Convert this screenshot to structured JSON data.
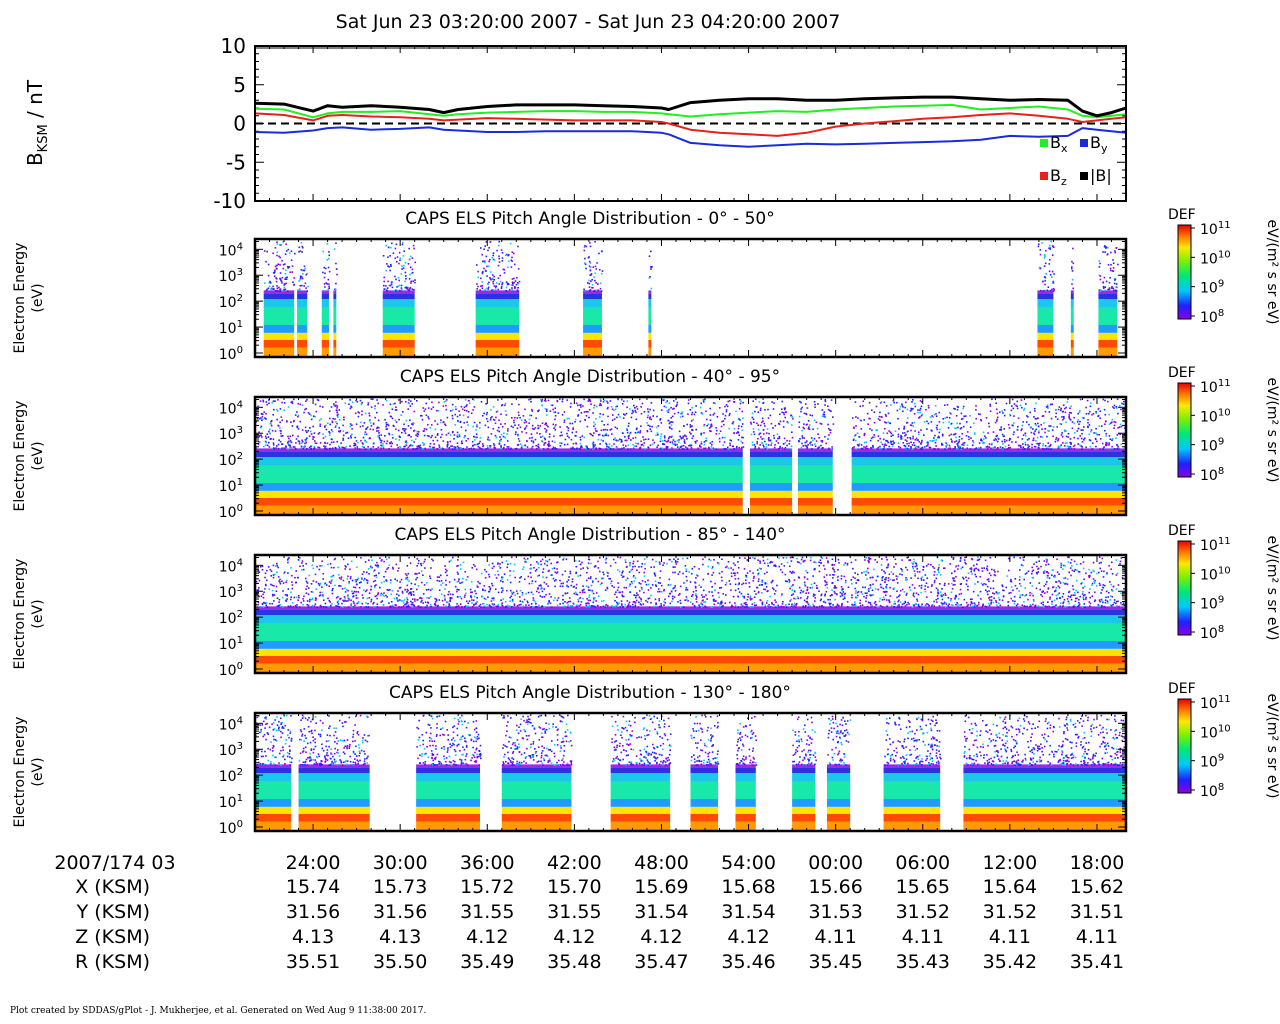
{
  "title": "Sat Jun 23 03:20:00 2007 - Sat Jun 23 04:20:00 2007",
  "footer": "Plot created by SDDAS/gPlot - J. Mukherjee, et al.  Generated on Wed Aug 9 11:38:00 2017.",
  "colors": {
    "bx": "#22ee22",
    "by": "#1a2bd8",
    "bz": "#e8211a",
    "bmag": "#000000"
  },
  "chart_data": [
    {
      "type": "line",
      "ylabel": "B_KSM / nT",
      "ylim": [
        -10,
        10
      ],
      "yticks": [
        "10",
        "5",
        "0",
        "-5",
        "-10"
      ],
      "xlim_min": [
        20,
        80
      ],
      "zero_line": "dashed",
      "legend_placement": "bottom-right",
      "x": [
        20,
        22,
        24,
        25,
        26,
        28,
        30,
        32,
        33,
        34,
        36,
        38,
        40,
        42,
        44,
        46,
        48,
        48.5,
        50,
        52,
        54,
        56,
        58,
        60,
        62,
        64,
        66,
        68,
        70,
        72,
        74,
        76,
        77,
        78,
        79,
        80
      ],
      "series": [
        {
          "name": "B",
          "sub": "x",
          "key": "bx",
          "values": [
            1.9,
            1.8,
            0.8,
            1.3,
            1.5,
            1.5,
            1.6,
            1.2,
            1.0,
            1.2,
            1.4,
            1.5,
            1.6,
            1.6,
            1.5,
            1.5,
            1.3,
            1.2,
            0.9,
            1.2,
            1.4,
            1.6,
            1.5,
            1.8,
            2.0,
            2.2,
            2.3,
            2.4,
            1.8,
            2.0,
            2.2,
            1.8,
            1.0,
            0.8,
            1.0,
            1.2
          ]
        },
        {
          "name": "B",
          "sub": "y",
          "key": "by",
          "values": [
            -1.1,
            -1.2,
            -0.9,
            -0.6,
            -0.5,
            -0.8,
            -0.7,
            -0.5,
            -0.8,
            -0.9,
            -1.1,
            -1.1,
            -1.0,
            -1.0,
            -1.0,
            -1.0,
            -1.2,
            -1.4,
            -2.5,
            -2.8,
            -3.0,
            -2.8,
            -2.6,
            -2.7,
            -2.6,
            -2.5,
            -2.4,
            -2.3,
            -2.1,
            -1.6,
            -1.7,
            -1.6,
            -0.6,
            -0.8,
            -1.0,
            -1.2
          ]
        },
        {
          "name": "B",
          "sub": "z",
          "key": "bz",
          "values": [
            1.3,
            1.1,
            0.4,
            1.0,
            1.1,
            0.9,
            0.8,
            0.6,
            0.4,
            0.5,
            0.7,
            0.6,
            0.5,
            0.4,
            0.4,
            0.4,
            0.2,
            0.0,
            -0.8,
            -1.2,
            -1.4,
            -1.6,
            -1.2,
            -0.4,
            0.0,
            0.3,
            0.6,
            0.8,
            1.1,
            1.3,
            1.0,
            0.6,
            0.2,
            0.4,
            0.6,
            0.8
          ]
        },
        {
          "name": "|B|",
          "sub": "",
          "key": "bmag",
          "values": [
            2.6,
            2.5,
            1.6,
            2.3,
            2.1,
            2.3,
            2.1,
            1.8,
            1.4,
            1.8,
            2.2,
            2.4,
            2.4,
            2.4,
            2.3,
            2.2,
            2.0,
            1.8,
            2.7,
            3.0,
            3.2,
            3.2,
            3.0,
            3.0,
            3.2,
            3.3,
            3.4,
            3.4,
            3.2,
            3.0,
            3.1,
            3.0,
            1.6,
            1.0,
            1.4,
            2.0
          ]
        }
      ]
    },
    {
      "type": "heatmap",
      "title": "CAPS ELS Pitch Angle Distribution - 0° - 50°",
      "ylabel": "Electron Energy (eV)",
      "yscale": "log",
      "yticks": [
        "10^4",
        "10^3",
        "10^2",
        "10^1",
        "10^0"
      ],
      "colorbar_label": "DEF",
      "colorbar_units": "eV/(m² s sr eV)",
      "colorbar_ticks": [
        "10^11",
        "10^10",
        "10^9",
        "10^8"
      ],
      "data_intervals_min": [
        [
          20.6,
          22.7
        ],
        [
          22.9,
          23.6
        ],
        [
          24.6,
          25.1
        ],
        [
          25.4,
          25.6
        ],
        [
          28.8,
          31.0
        ],
        [
          35.2,
          38.2
        ],
        [
          42.6,
          43.9
        ],
        [
          47.1,
          47.3
        ],
        [
          73.9,
          75.0
        ],
        [
          76.2,
          76.4
        ],
        [
          78.1,
          79.4
        ]
      ]
    },
    {
      "type": "heatmap",
      "title": "CAPS ELS Pitch Angle Distribution - 40° - 95°",
      "ylabel": "Electron Energy (eV)",
      "yscale": "log",
      "yticks": [
        "10^4",
        "10^3",
        "10^2",
        "10^1",
        "10^0"
      ],
      "colorbar_label": "DEF",
      "colorbar_units": "eV/(m² s sr eV)",
      "colorbar_ticks": [
        "10^11",
        "10^10",
        "10^9",
        "10^8"
      ],
      "data_intervals_min": [
        [
          20.0,
          53.6
        ],
        [
          54.1,
          57.0
        ],
        [
          57.4,
          59.8
        ],
        [
          61.1,
          80.0
        ]
      ]
    },
    {
      "type": "heatmap",
      "title": "CAPS ELS Pitch Angle Distribution - 85° - 140°",
      "ylabel": "Electron Energy (eV)",
      "yscale": "log",
      "yticks": [
        "10^4",
        "10^3",
        "10^2",
        "10^1",
        "10^0"
      ],
      "colorbar_label": "DEF",
      "colorbar_units": "eV/(m² s sr eV)",
      "colorbar_ticks": [
        "10^11",
        "10^10",
        "10^9",
        "10^8"
      ],
      "data_intervals_min": [
        [
          20.0,
          80.0
        ]
      ]
    },
    {
      "type": "heatmap",
      "title": "CAPS ELS Pitch Angle Distribution - 130° - 180°",
      "ylabel": "Electron Energy (eV)",
      "yscale": "log",
      "yticks": [
        "10^4",
        "10^3",
        "10^2",
        "10^1",
        "10^0"
      ],
      "colorbar_label": "DEF",
      "colorbar_units": "eV/(m² s sr eV)",
      "colorbar_ticks": [
        "10^11",
        "10^10",
        "10^9",
        "10^8"
      ],
      "data_intervals_min": [
        [
          20.0,
          22.5
        ],
        [
          23.0,
          27.9
        ],
        [
          31.1,
          35.5
        ],
        [
          37.0,
          41.8
        ],
        [
          44.5,
          48.6
        ],
        [
          50.0,
          51.9
        ],
        [
          53.1,
          54.5
        ],
        [
          57.0,
          58.6
        ],
        [
          59.4,
          61.0
        ],
        [
          63.3,
          67.2
        ],
        [
          68.8,
          80.0
        ]
      ]
    }
  ],
  "time_axis": {
    "date_label": "2007/174 03",
    "ticks_min": [
      24,
      30,
      36,
      42,
      48,
      54,
      60,
      66,
      72,
      78
    ],
    "tick_labels": [
      "24:00",
      "30:00",
      "36:00",
      "42:00",
      "48:00",
      "54:00",
      "00:00",
      "06:00",
      "12:00",
      "18:00"
    ]
  },
  "ephemeris": [
    {
      "label": "X (KSM)",
      "values": [
        "15.74",
        "15.73",
        "15.72",
        "15.70",
        "15.69",
        "15.68",
        "15.66",
        "15.65",
        "15.64",
        "15.62"
      ]
    },
    {
      "label": "Y (KSM)",
      "values": [
        "31.56",
        "31.56",
        "31.55",
        "31.55",
        "31.54",
        "31.54",
        "31.53",
        "31.52",
        "31.52",
        "31.51"
      ]
    },
    {
      "label": "Z (KSM)",
      "values": [
        "4.13",
        "4.13",
        "4.12",
        "4.12",
        "4.12",
        "4.12",
        "4.11",
        "4.11",
        "4.11",
        "4.11"
      ]
    },
    {
      "label": "R (KSM)",
      "values": [
        "35.51",
        "35.50",
        "35.49",
        "35.48",
        "35.47",
        "35.46",
        "35.45",
        "35.43",
        "35.42",
        "35.41"
      ]
    }
  ]
}
